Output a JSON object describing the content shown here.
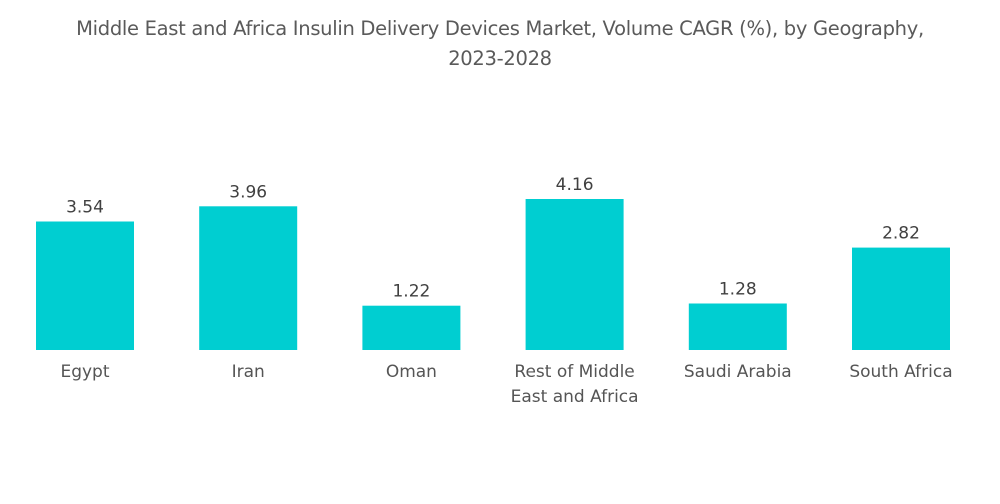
{
  "chart_data": {
    "type": "bar",
    "title": "Middle East and Africa Insulin Delivery Devices Market, Volume CAGR (%), by Geography, 2023-2028",
    "title_lines": [
      "Middle East and Africa Insulin Delivery Devices Market, Volume CAGR (%), by Geography,",
      "2023-2028"
    ],
    "categories": [
      "Egypt",
      "Iran",
      "Oman",
      "Rest of Middle East and Africa",
      "Saudi Arabia",
      "South Africa"
    ],
    "category_lines": [
      [
        "Egypt"
      ],
      [
        "Iran"
      ],
      [
        "Oman"
      ],
      [
        "Rest of Middle",
        "East and Africa"
      ],
      [
        "Saudi Arabia"
      ],
      [
        "South Africa"
      ]
    ],
    "values": [
      3.54,
      3.96,
      1.22,
      4.16,
      1.28,
      2.82
    ],
    "value_labels": [
      "3.54",
      "3.96",
      "1.22",
      "4.16",
      "1.28",
      "2.82"
    ],
    "xlabel": "",
    "ylabel": "",
    "ylim": [
      0,
      4.16
    ],
    "grid": false,
    "legend": "none",
    "bar_color": "#00ced1"
  }
}
